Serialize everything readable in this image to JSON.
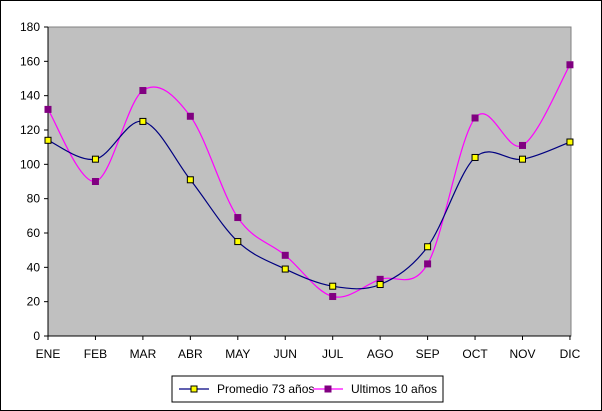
{
  "chart_data": {
    "type": "line",
    "title": "",
    "xlabel": "",
    "ylabel": "",
    "categories": [
      "ENE",
      "FEB",
      "MAR",
      "ABR",
      "MAY",
      "JUN",
      "JUL",
      "AGO",
      "SEP",
      "OCT",
      "NOV",
      "DIC"
    ],
    "ylim": [
      0,
      180
    ],
    "yticks": [
      0,
      20,
      40,
      60,
      80,
      100,
      120,
      140,
      160,
      180
    ],
    "grid": false,
    "smooth": true,
    "legend_position": "bottom",
    "plot_background": "#c0c0c0",
    "series": [
      {
        "name": "Promedio 73 años",
        "values": [
          114,
          103,
          125,
          91,
          55,
          39,
          29,
          30,
          52,
          104,
          103,
          113
        ],
        "line_color": "#000080",
        "marker": "square",
        "marker_fill": "#ffff00",
        "marker_stroke": "#000000"
      },
      {
        "name": "Ultimos 10 años",
        "values": [
          132,
          90,
          143,
          128,
          69,
          47,
          23,
          33,
          42,
          127,
          111,
          158
        ],
        "line_color": "#ff00ff",
        "marker": "square",
        "marker_fill": "#800080",
        "marker_stroke": "#800080"
      }
    ]
  }
}
